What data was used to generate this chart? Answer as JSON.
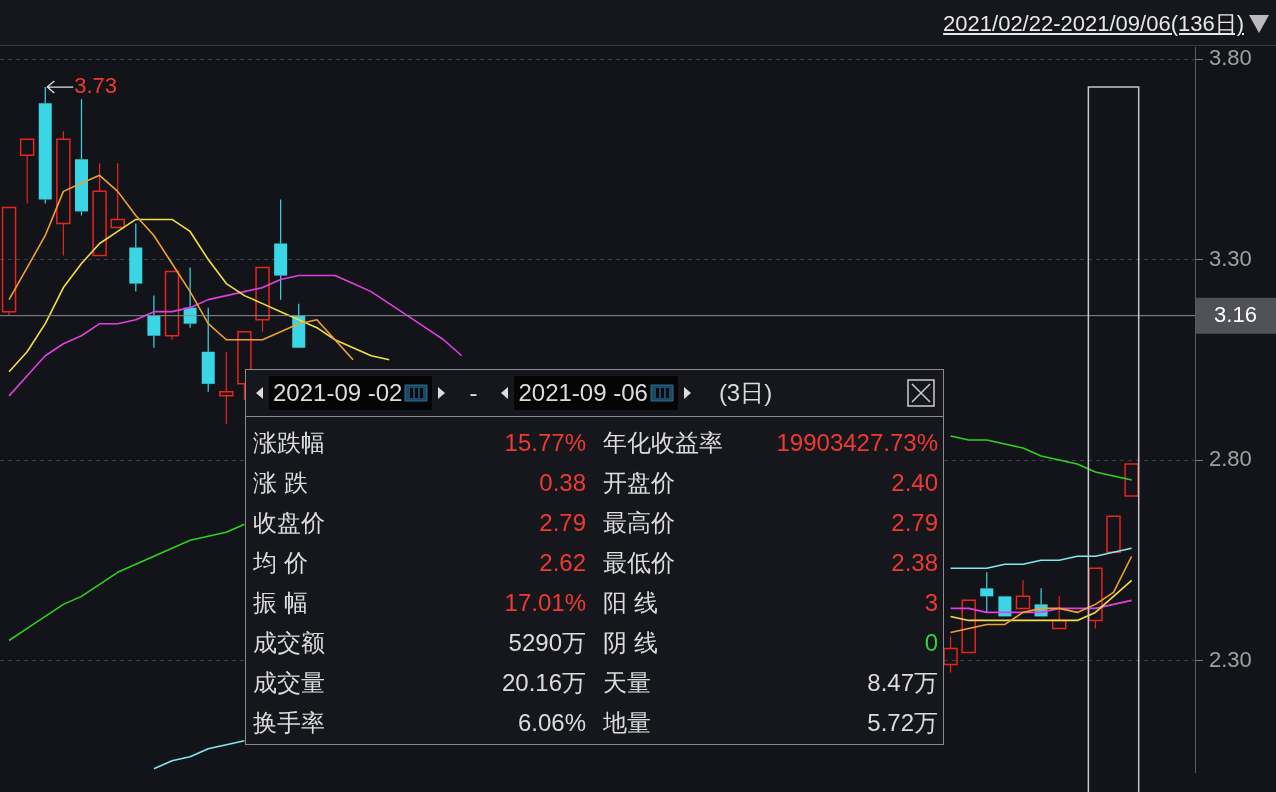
{
  "chart_data": {
    "type": "candlestick",
    "categories": [
      null,
      null,
      null,
      null,
      null,
      null,
      null,
      null,
      null,
      null,
      null,
      null,
      null,
      null,
      null,
      null,
      null,
      null,
      null,
      null,
      null,
      null,
      null,
      null,
      null,
      null,
      null,
      null,
      null,
      null,
      null,
      null,
      null,
      null,
      null,
      null,
      null,
      null,
      null,
      null,
      null,
      null,
      null,
      null,
      null,
      null,
      null,
      null,
      null,
      null,
      null,
      null,
      null,
      null,
      null,
      null,
      null,
      null,
      null,
      null,
      null,
      null,
      null,
      null,
      null,
      null
    ],
    "ohlc": [
      [
        3.17,
        3.43,
        3.16,
        3.43
      ],
      [
        3.56,
        3.6,
        3.44,
        3.6
      ],
      [
        3.69,
        3.73,
        3.44,
        3.45
      ],
      [
        3.39,
        3.62,
        3.31,
        3.6
      ],
      [
        3.55,
        3.7,
        3.41,
        3.42
      ],
      [
        3.31,
        3.54,
        3.31,
        3.47
      ],
      [
        3.38,
        3.54,
        3.38,
        3.4
      ],
      [
        3.33,
        3.39,
        3.22,
        3.24
      ],
      [
        3.16,
        3.21,
        3.08,
        3.11
      ],
      [
        3.11,
        3.27,
        3.1,
        3.27
      ],
      [
        3.18,
        3.28,
        3.13,
        3.14
      ],
      [
        3.07,
        3.18,
        2.97,
        2.99
      ],
      [
        2.96,
        3.07,
        2.89,
        2.97
      ],
      [
        2.99,
        3.12,
        2.95,
        3.12
      ],
      [
        3.15,
        3.28,
        3.12,
        3.28
      ],
      [
        3.34,
        3.45,
        3.2,
        3.26
      ],
      [
        3.16,
        3.19,
        3.08,
        3.08
      ],
      null,
      null,
      null,
      null,
      null,
      null,
      null,
      null,
      null,
      null,
      null,
      null,
      null,
      null,
      null,
      null,
      null,
      null,
      null,
      null,
      null,
      null,
      null,
      null,
      null,
      null,
      null,
      null,
      null,
      null,
      null,
      null,
      null,
      null,
      null,
      [
        2.29,
        2.36,
        2.27,
        2.33
      ],
      [
        2.32,
        2.45,
        2.32,
        2.45
      ],
      [
        2.48,
        2.52,
        2.42,
        2.46
      ],
      [
        2.46,
        2.46,
        2.41,
        2.41
      ],
      [
        2.43,
        2.5,
        2.43,
        2.46
      ],
      [
        2.44,
        2.48,
        2.41,
        2.41
      ],
      [
        2.38,
        2.46,
        2.38,
        2.4
      ],
      null,
      [
        2.4,
        2.53,
        2.38,
        2.53
      ],
      [
        2.57,
        2.66,
        2.57,
        2.66
      ],
      [
        2.71,
        2.79,
        2.71,
        2.79
      ],
      null,
      null,
      null
    ],
    "colors": [
      "#e8241c",
      "#e8241c",
      "#3ad6e6",
      "#e8241c",
      "#3ad6e6",
      "#e8241c",
      "#e8241c",
      "#3ad6e6",
      "#3ad6e6",
      "#e8241c",
      "#3ad6e6",
      "#3ad6e6",
      "#e8241c",
      "#e8241c",
      "#e8241c",
      "#3ad6e6",
      "#3ad6e6",
      null,
      null,
      null,
      null,
      null,
      null,
      null,
      null,
      null,
      null,
      null,
      null,
      null,
      null,
      null,
      null,
      null,
      null,
      null,
      null,
      null,
      null,
      null,
      null,
      null,
      null,
      null,
      null,
      null,
      null,
      null,
      null,
      null,
      null,
      null,
      "#e8241c",
      "#e8241c",
      "#3ad6e6",
      "#3ad6e6",
      "#e8241c",
      "#3ad6e6",
      "#e8241c",
      null,
      "#e8241c",
      "#e8241c",
      "#e8241c",
      null,
      null,
      null
    ],
    "series": [
      {
        "type": "line",
        "color": "#f0a030",
        "values": [
          3.2,
          3.28,
          3.36,
          3.47,
          3.49,
          3.51,
          3.47,
          3.41,
          3.36,
          3.29,
          3.22,
          3.14,
          3.1,
          3.1,
          3.1,
          3.12,
          3.14,
          3.15,
          3.1,
          3.05,
          null,
          null,
          null,
          null,
          null,
          null,
          null,
          null,
          null,
          null,
          null,
          null,
          null,
          null,
          null,
          null,
          null,
          null,
          null,
          null,
          null,
          null,
          null,
          null,
          null,
          null,
          null,
          null,
          null,
          null,
          null,
          null,
          2.37,
          2.38,
          2.39,
          2.39,
          2.42,
          2.43,
          2.43,
          2.42,
          2.44,
          2.47,
          2.56,
          null,
          null,
          null
        ]
      },
      {
        "type": "line",
        "color": "#f0e040",
        "values": [
          3.02,
          3.07,
          3.14,
          3.23,
          3.29,
          3.34,
          3.37,
          3.4,
          3.4,
          3.4,
          3.37,
          3.3,
          3.24,
          3.21,
          3.19,
          3.17,
          3.15,
          3.13,
          3.1,
          3.08,
          3.06,
          3.05,
          null,
          null,
          null,
          null,
          null,
          null,
          null,
          null,
          null,
          null,
          null,
          null,
          null,
          null,
          null,
          null,
          null,
          null,
          null,
          null,
          null,
          null,
          null,
          null,
          null,
          null,
          null,
          null,
          null,
          null,
          2.41,
          2.4,
          2.4,
          2.4,
          2.4,
          2.4,
          2.4,
          2.4,
          2.42,
          2.46,
          2.5,
          null,
          null,
          null
        ]
      },
      {
        "type": "line",
        "color": "#e040e0",
        "values": [
          2.96,
          3.01,
          3.06,
          3.09,
          3.11,
          3.14,
          3.14,
          3.15,
          3.17,
          3.17,
          3.18,
          3.2,
          3.21,
          3.22,
          3.23,
          3.25,
          3.26,
          3.26,
          3.26,
          3.24,
          3.22,
          3.19,
          3.16,
          3.13,
          3.1,
          3.06,
          null,
          null,
          null,
          null,
          null,
          null,
          null,
          null,
          null,
          null,
          null,
          null,
          null,
          null,
          null,
          null,
          null,
          null,
          null,
          null,
          null,
          null,
          null,
          null,
          null,
          null,
          2.43,
          2.43,
          2.42,
          2.42,
          2.42,
          2.42,
          2.43,
          2.43,
          2.43,
          2.44,
          2.45,
          null,
          null,
          null
        ]
      },
      {
        "type": "line",
        "color": "#30d020",
        "values": [
          2.35,
          2.38,
          2.41,
          2.44,
          2.46,
          2.49,
          2.52,
          2.54,
          2.56,
          2.58,
          2.6,
          2.61,
          2.62,
          2.64,
          null,
          null,
          null,
          null,
          null,
          null,
          null,
          null,
          null,
          null,
          null,
          null,
          null,
          null,
          null,
          null,
          null,
          null,
          null,
          null,
          null,
          null,
          null,
          null,
          null,
          null,
          null,
          null,
          null,
          null,
          null,
          null,
          null,
          null,
          null,
          null,
          null,
          null,
          2.86,
          2.85,
          2.85,
          2.84,
          2.83,
          2.81,
          2.8,
          2.79,
          2.77,
          2.76,
          2.75,
          null,
          null,
          null
        ]
      },
      {
        "type": "line",
        "color": "#80e8f0",
        "values": [
          null,
          null,
          null,
          null,
          null,
          null,
          null,
          null,
          2.03,
          2.05,
          2.06,
          2.08,
          2.09,
          2.1,
          null,
          null,
          null,
          null,
          null,
          null,
          null,
          null,
          null,
          null,
          null,
          null,
          null,
          null,
          null,
          null,
          null,
          null,
          null,
          null,
          null,
          null,
          null,
          null,
          null,
          null,
          null,
          null,
          null,
          null,
          null,
          null,
          null,
          null,
          null,
          null,
          null,
          null,
          2.53,
          2.53,
          2.53,
          2.54,
          2.54,
          2.55,
          2.55,
          2.56,
          2.56,
          2.57,
          2.58,
          null,
          null,
          null
        ]
      }
    ],
    "ylim": [
      2.02,
      3.83
    ],
    "yticks": [
      {
        "value": 2.3,
        "label": "2.30"
      },
      {
        "value": 2.8,
        "label": "2.80"
      },
      {
        "value": 3.3,
        "label": "3.30"
      },
      {
        "value": 3.8,
        "label": "3.80"
      }
    ],
    "grid": "y",
    "legend": false,
    "tick_labels": "y",
    "ref_lines": [
      {
        "axis": "y",
        "value": 3.16,
        "label": "3.16"
      }
    ],
    "annotations": [
      "2021/02/22-2021/09/06(136日)",
      "3.73",
      "2021-09 -02",
      "-",
      "2021-09 -06",
      "(3日)",
      "涨跌幅",
      "15.77%",
      "年化收益率",
      "19903427.73%",
      "涨 跌",
      "0.38",
      "开盘价",
      "2.40",
      "收盘价",
      "2.79",
      "最高价",
      "2.79",
      "均 价",
      "2.62",
      "最低价",
      "2.38",
      "振 幅",
      "17.01%",
      "阳 线",
      "3",
      "成交额",
      "5290万",
      "阴 线",
      "0",
      "成交量",
      "20.16万",
      "天量",
      "8.47万",
      "换手率",
      "6.06%",
      "地量",
      "5.72万"
    ]
  }
}
